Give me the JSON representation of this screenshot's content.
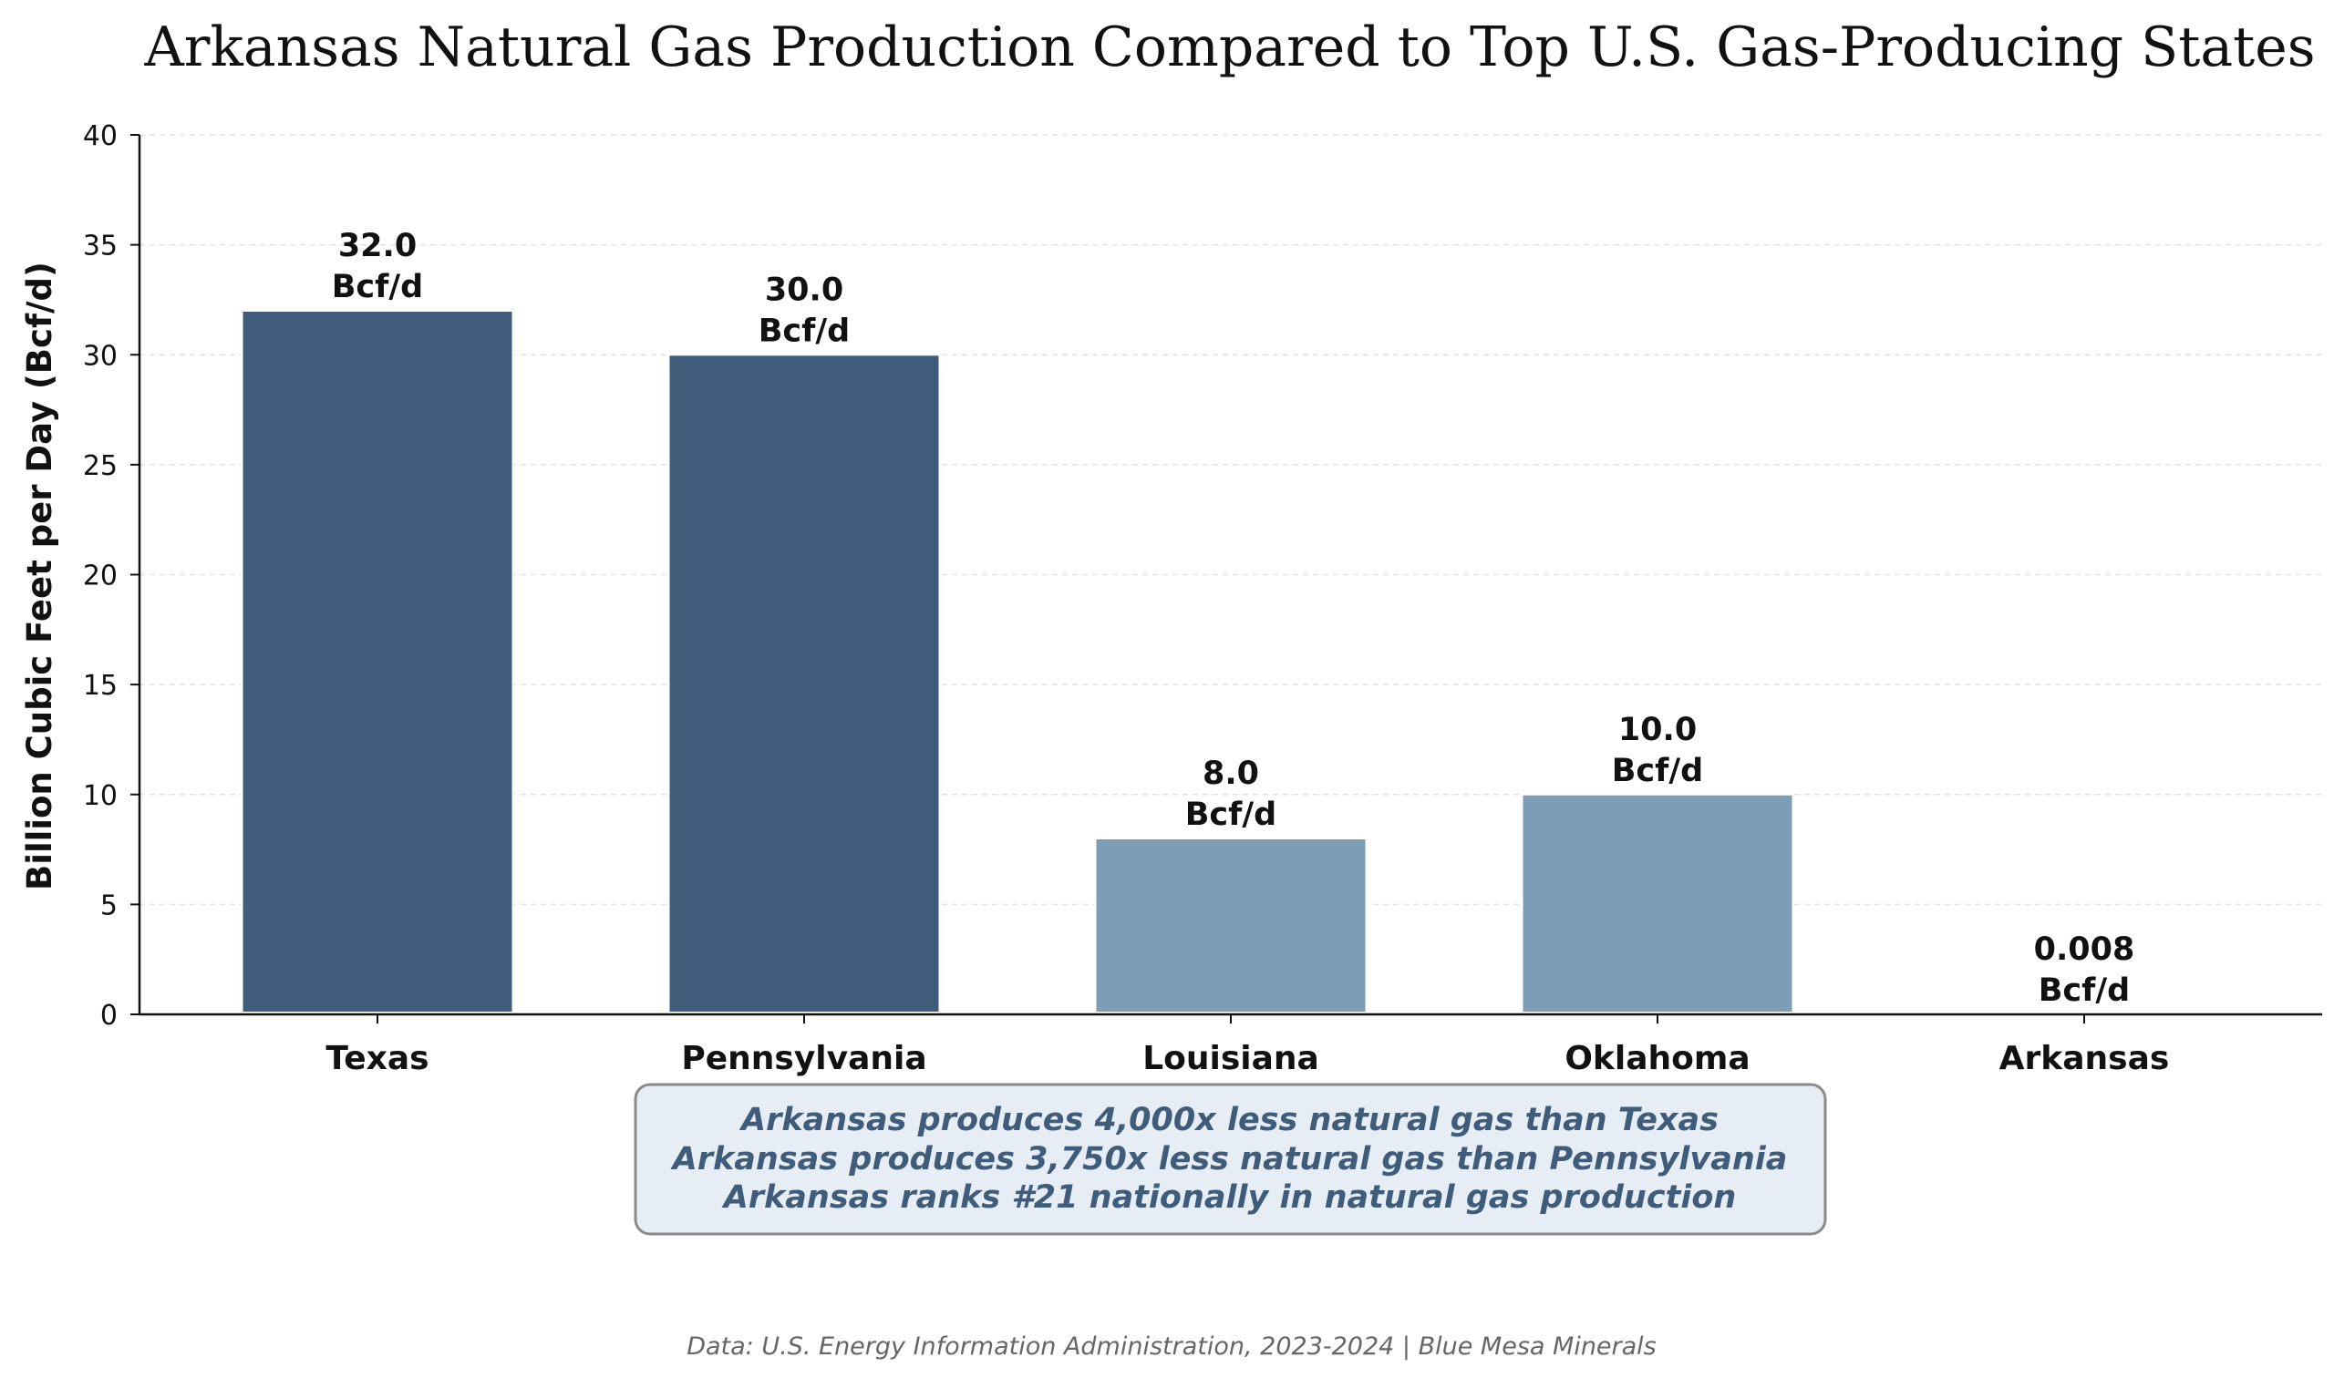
{
  "chart_data": {
    "type": "bar",
    "title": "Arkansas Natural Gas Production Compared to Top U.S. Gas-Producing States",
    "xlabel": "",
    "ylabel": "Billion Cubic Feet per Day (Bcf/d)",
    "ylim": [
      0,
      40
    ],
    "yticks": [
      "0",
      "5",
      "10",
      "15",
      "20",
      "25",
      "30",
      "35",
      "40"
    ],
    "grid": "horizontal dashed",
    "categories": [
      "Texas",
      "Pennsylvania",
      "Louisiana",
      "Oklahoma",
      "Arkansas"
    ],
    "values": [
      32.0,
      30.0,
      8.0,
      10.0,
      0.008
    ],
    "value_labels": [
      "32.0",
      "30.0",
      "8.0",
      "10.0",
      "0.008"
    ],
    "unit_label": "Bcf/d",
    "bar_colors": [
      "#3f5d7a",
      "#3f5d7a",
      "#7d9db6",
      "#7d9db6",
      "#7d9db6"
    ],
    "annotation_lines": [
      "Arkansas produces 4,000x less natural gas than Texas",
      "Arkansas produces 3,750x less natural gas than Pennsylvania",
      "Arkansas ranks #21 nationally in natural gas production"
    ],
    "annotation_colors": {
      "text": "#3f5d7a",
      "background": "#e6edf4",
      "border": "#8a8a8a"
    },
    "footer": "Data: U.S. Energy Information Administration, 2023-2024 | Blue Mesa Minerals"
  }
}
